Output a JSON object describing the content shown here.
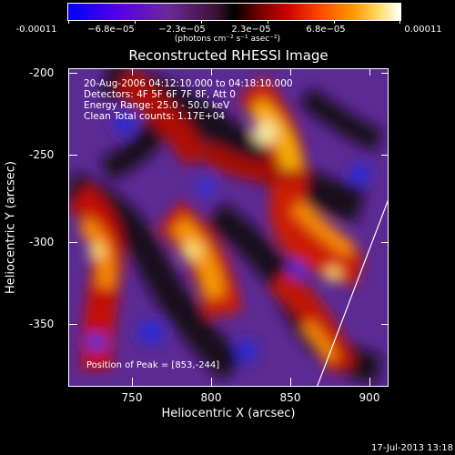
{
  "colorbar": {
    "labels": [
      "-0.00011",
      "−6.8e−05",
      "−2.3e−05",
      "2.3e−05",
      "6.8e−05",
      "0.00011"
    ],
    "units": "(photons cm⁻² s⁻¹ asec⁻²)"
  },
  "title": "Reconstructed RHESSI Image",
  "info": {
    "line1": "20-Aug-2006 04:12:10.000 to 04:18:10.000",
    "line2": "Detectors: 4F 5F 6F 7F 8F, Att 0",
    "line3": "Energy Range: 25.0 - 50.0 keV",
    "line4": "Clean   Total counts: 1.17E+04"
  },
  "peak": "Position of Peak = [853,-244]",
  "xaxis": {
    "label": "Heliocentric X (arcsec)",
    "ticks": [
      "750",
      "800",
      "850",
      "900"
    ]
  },
  "yaxis": {
    "label": "Heliocentric Y (arcsec)",
    "ticks": [
      "-200",
      "-250",
      "-300",
      "-350"
    ]
  },
  "timestamp": "17-Jul-2013 13:18"
}
